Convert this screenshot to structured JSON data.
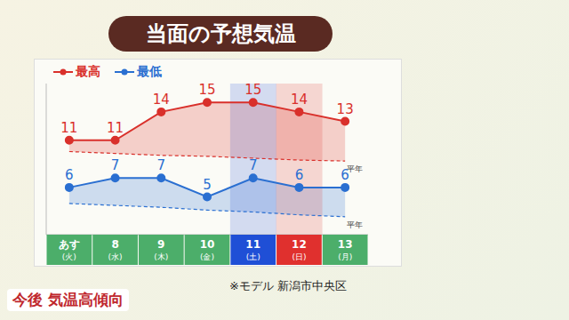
{
  "title": "当面の予想気温",
  "note": "※モデル 新潟市中央区",
  "caption": "今後 気温高傾向",
  "chart_data": {
    "type": "line",
    "categories": [
      "あす",
      "8",
      "9",
      "10",
      "11",
      "12",
      "13"
    ],
    "weekdays": [
      "(火)",
      "(水)",
      "(木)",
      "(金)",
      "(土)",
      "(日)",
      "(月)"
    ],
    "colors": [
      "#4cae6a",
      "#4cae6a",
      "#4cae6a",
      "#4cae6a",
      "#1f4fd6",
      "#e0302e",
      "#4cae6a"
    ],
    "series": [
      {
        "name": "最高",
        "color": "#d9302b",
        "marker": "circle",
        "values": [
          11,
          11,
          14,
          15,
          15,
          14,
          13
        ]
      },
      {
        "name": "最低",
        "color": "#2a6fd1",
        "marker": "circle",
        "values": [
          6,
          7,
          7,
          5,
          7,
          6,
          6
        ]
      },
      {
        "name": "平年",
        "color": "#d9302b",
        "line_style": "dashed",
        "values": [
          9.8,
          9.6,
          9.4,
          9.3,
          9.1,
          8.9,
          8.8
        ]
      },
      {
        "name": "平年",
        "color": "#2a6fd1",
        "line_style": "dashed",
        "values": [
          4.3,
          4.1,
          3.9,
          3.6,
          3.4,
          3.1,
          2.9
        ]
      }
    ],
    "ylim": [
      1,
      17
    ],
    "legend": "upper left",
    "data_labels": true,
    "tick_labels": "x",
    "grid": false
  }
}
